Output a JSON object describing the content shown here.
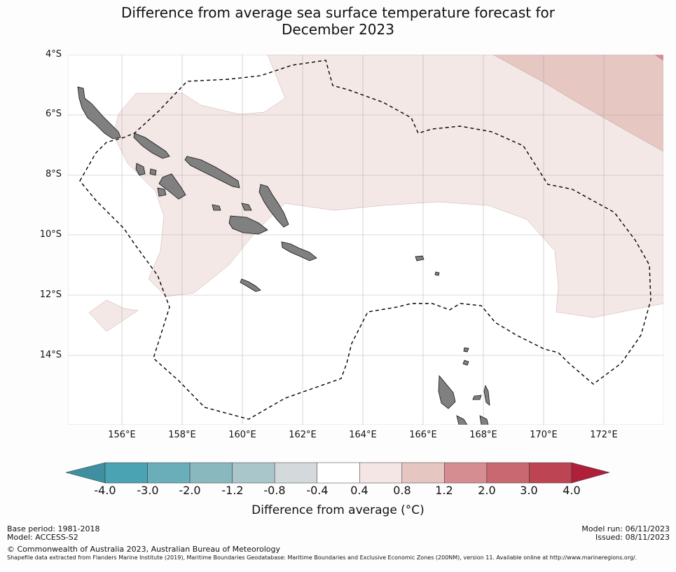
{
  "title_line1": "Difference from average sea surface temperature forecast for",
  "title_line2": "December 2023",
  "lat_labels": [
    "4°S",
    "6°S",
    "8°S",
    "10°S",
    "12°S",
    "14°S"
  ],
  "lon_labels": [
    "156°E",
    "158°E",
    "160°E",
    "162°E",
    "164°E",
    "166°E",
    "168°E",
    "170°E",
    "172°E"
  ],
  "colorbar": {
    "ticks": [
      "-4.0",
      "-3.0",
      "-2.0",
      "-1.2",
      "-0.8",
      "-0.4",
      "0.4",
      "0.8",
      "1.2",
      "2.0",
      "3.0",
      "4.0"
    ],
    "colors": [
      "#3f8fa0",
      "#4aa3b2",
      "#6aaeba",
      "#89b8bf",
      "#a9c6ca",
      "#d4d9db",
      "#ffffff",
      "#f3e6e4",
      "#e6c6c1",
      "#d68d92",
      "#c96870",
      "#bd4452",
      "#b01f3a"
    ],
    "label": "Difference from average (°C)"
  },
  "footer": {
    "base_period": "Base period: 1981-2018",
    "model": "Model: ACCESS-S2",
    "copyright": "© Commonwealth of Australia 2023, Australian Bureau of Meteorology",
    "shapefile": "Shapefile data extracted from Flanders Marine Institute (2019), Maritime Boundaries Geodatabase: Maritime Boundaries and Exclusive Economic Zones (200NM), version 11. Available online at http://www.marineregions.org/.",
    "model_run": "Model run: 06/11/2023",
    "issued": "Issued: 08/11/2023"
  }
}
